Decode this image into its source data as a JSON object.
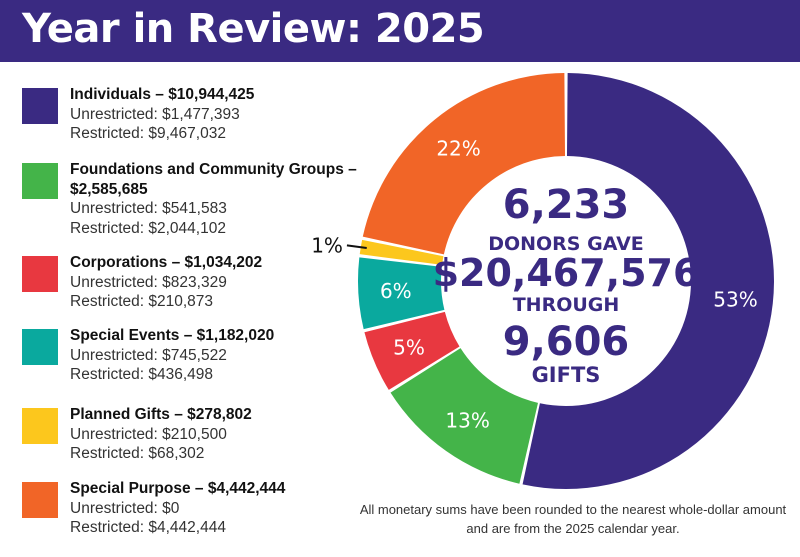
{
  "header": {
    "title": "Year in Review: 2025"
  },
  "legend": [
    {
      "title": "Individuals – $10,944,425",
      "unrestricted": "Unrestricted: $1,477,393",
      "restricted": "Restricted: $9,467,032",
      "color": "#3a2a82"
    },
    {
      "title": "Foundations and Community Groups – $2,585,685",
      "unrestricted": "Unrestricted: $541,583",
      "restricted": "Restricted: $2,044,102",
      "color": "#44b449"
    },
    {
      "title": "Corporations – $1,034,202",
      "unrestricted": "Unrestricted: $823,329",
      "restricted": "Restricted: $210,873",
      "color": "#e83840"
    },
    {
      "title": "Special Events – $1,182,020",
      "unrestricted": "Unrestricted: $745,522",
      "restricted": "Restricted: $436,498",
      "color": "#0aa99e"
    },
    {
      "title": "Planned Gifts – $278,802",
      "unrestricted": "Unrestricted: $210,500",
      "restricted": "Restricted: $68,302",
      "color": "#fcc71d"
    },
    {
      "title": "Special Purpose – $4,442,444",
      "unrestricted": "Unrestricted: $0",
      "restricted": "Restricted: $4,442,444",
      "color": "#f16527"
    }
  ],
  "center": {
    "donors_count": "6,233",
    "donors_label": "DONORS GAVE",
    "total": "$20,467,576",
    "through_label": "THROUGH",
    "gifts_count": "9,606",
    "gifts_label": "GIFTS"
  },
  "footnote": "All monetary sums have been rounded to the nearest whole-dollar amount and are from the 2025 calendar year.",
  "chart_data": {
    "type": "pie",
    "categories": [
      "Individuals",
      "Foundations and Community Groups",
      "Corporations",
      "Special Events",
      "Planned Gifts",
      "Special Purpose"
    ],
    "values": [
      10944425,
      2585685,
      1034202,
      1182020,
      278802,
      4442444
    ],
    "percent_labels": [
      "53%",
      "13%",
      "5%",
      "6%",
      "1%",
      "22%"
    ],
    "colors": [
      "#3a2a82",
      "#44b449",
      "#e83840",
      "#0aa99e",
      "#fcc71d",
      "#f16527"
    ],
    "label_colors": [
      "#ffffff",
      "#ffffff",
      "#ffffff",
      "#ffffff",
      "#111111",
      "#ffffff"
    ]
  }
}
